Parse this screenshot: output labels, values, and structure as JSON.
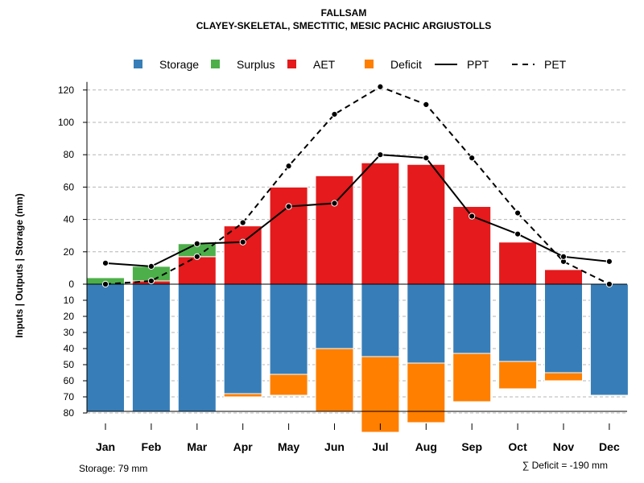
{
  "chart_data": {
    "type": "bar",
    "title": "FALLSAM",
    "subtitle": "CLAYEY-SKELETAL, SMECTITIC, MESIC PACHIC ARGIUSTOLLS",
    "ylabel": "Inputs | Outputs | Storage    (mm)",
    "xlabel": "",
    "ylim_top": [
      0,
      130
    ],
    "ylim_bottom": [
      0,
      80
    ],
    "yticks_top": [
      "0",
      "20",
      "40",
      "60",
      "80",
      "100",
      "120"
    ],
    "yticks_bottom": [
      "10",
      "20",
      "30",
      "40",
      "50",
      "60",
      "70",
      "80"
    ],
    "grid": true,
    "legend_position": "top",
    "categories": [
      "Jan",
      "Feb",
      "Mar",
      "Apr",
      "May",
      "Jun",
      "Jul",
      "Aug",
      "Sep",
      "Oct",
      "Nov",
      "Dec"
    ],
    "series": [
      {
        "name": "Storage",
        "kind": "bar-below",
        "color": "#377EB8",
        "values": [
          79,
          79,
          79,
          68,
          56,
          40,
          45,
          49,
          43,
          48,
          55,
          69
        ]
      },
      {
        "name": "Surplus",
        "kind": "bar-above-stack",
        "color": "#4DAF4A",
        "values": [
          4,
          9,
          8,
          0,
          0,
          0,
          0,
          0,
          0,
          0,
          0,
          0
        ]
      },
      {
        "name": "AET",
        "kind": "bar-above",
        "color": "#E41A1C",
        "values": [
          0,
          2,
          17,
          36,
          60,
          67,
          75,
          74,
          48,
          26,
          9,
          0
        ]
      },
      {
        "name": "Deficit",
        "kind": "bar-below-stack",
        "color": "#FF7F00",
        "values": [
          0,
          0,
          0,
          2,
          13,
          39,
          47,
          37,
          30,
          17,
          5,
          0
        ]
      },
      {
        "name": "PPT",
        "kind": "line-solid",
        "color": "#000000",
        "values": [
          13,
          11,
          25,
          26,
          48,
          50,
          80,
          78,
          42,
          31,
          17,
          14
        ]
      },
      {
        "name": "PET",
        "kind": "line-dashed",
        "color": "#000000",
        "values": [
          0,
          2,
          17,
          38,
          73,
          105,
          122,
          111,
          78,
          44,
          14,
          0
        ]
      }
    ],
    "annotations": {
      "storage_note": "Storage: 79 mm",
      "deficit_note": "∑ Deficit = -190 mm"
    }
  }
}
